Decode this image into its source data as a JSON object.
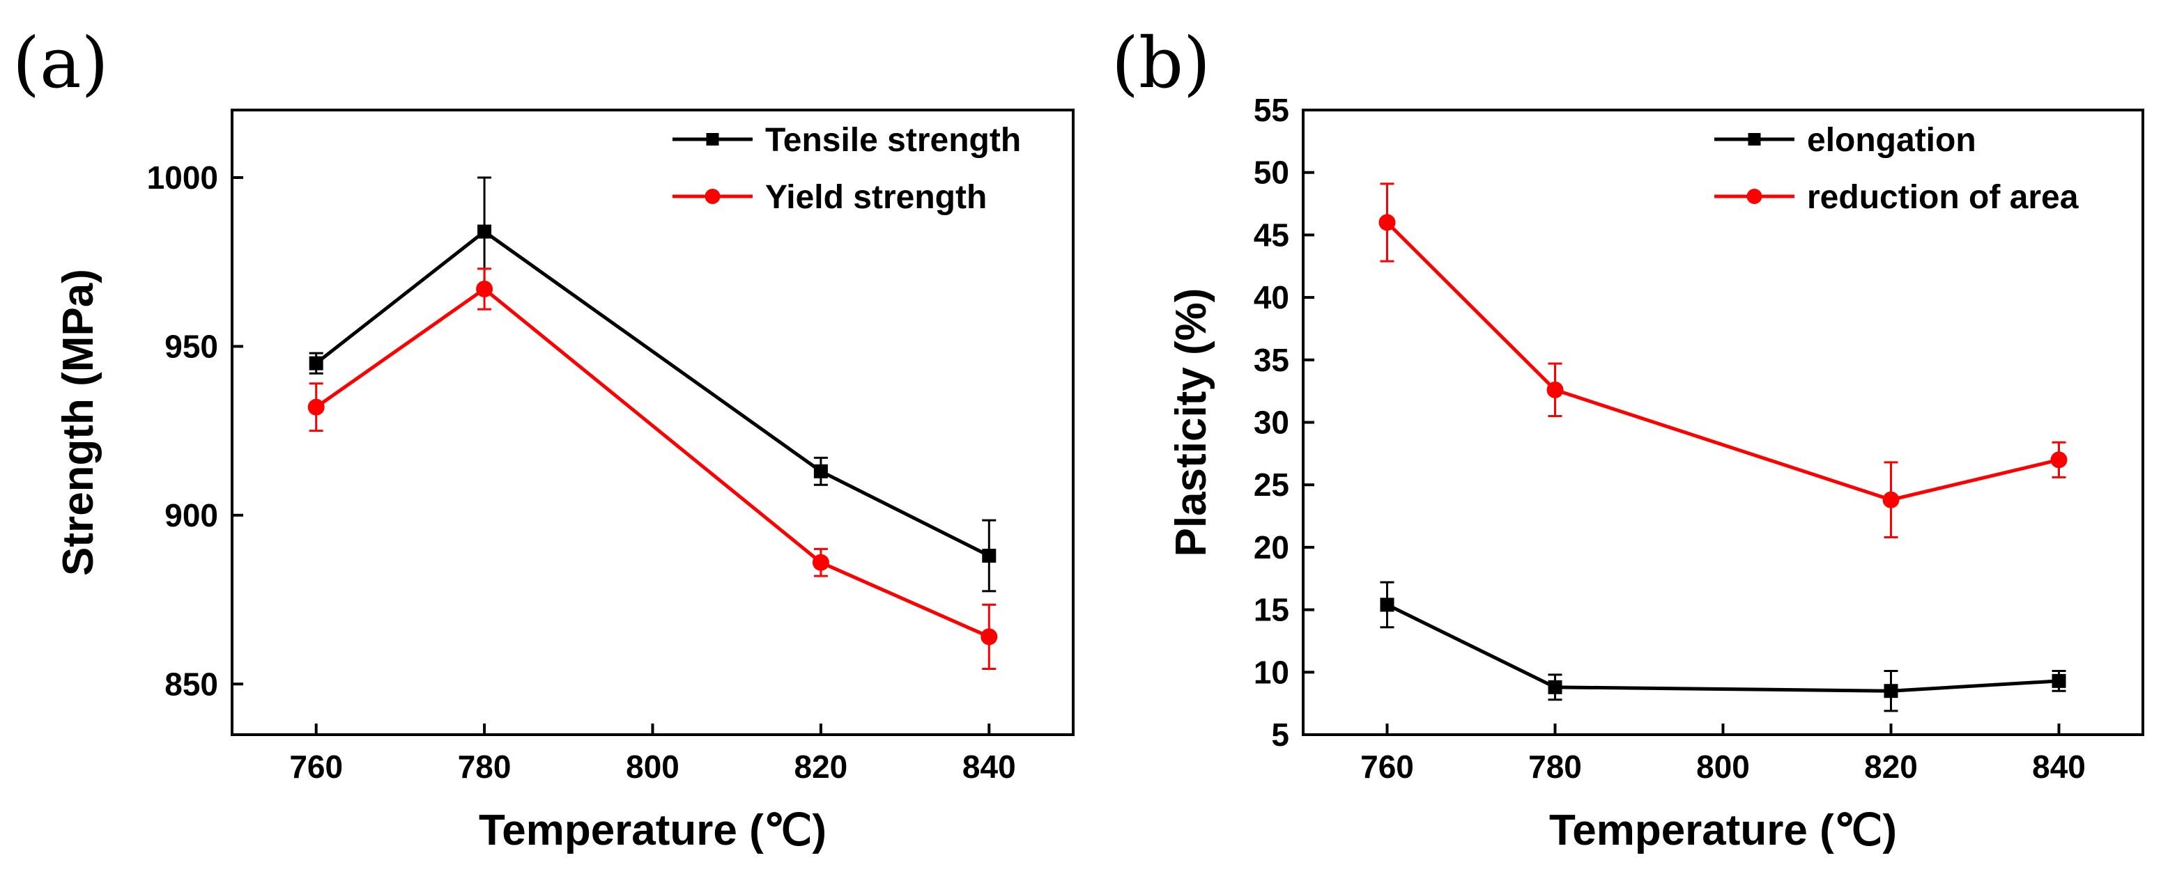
{
  "chart_data": [
    {
      "type": "line",
      "panel_label": "(a)",
      "xlabel": "Temperature (℃)",
      "ylabel": "Strength (MPa)",
      "xlim": [
        750,
        850
      ],
      "ylim": [
        835,
        1020
      ],
      "xticks": [
        760,
        780,
        800,
        820,
        840
      ],
      "yticks": [
        850,
        900,
        950,
        1000
      ],
      "x": [
        760,
        780,
        820,
        840
      ],
      "legend_position": "top-right",
      "series": [
        {
          "name": "Tensile strength",
          "color": "#000000",
          "marker": "square",
          "values": [
            945,
            984,
            913,
            888
          ],
          "errors": [
            3,
            16,
            4,
            10.5
          ]
        },
        {
          "name": "Yield strength",
          "color": "#ff0000",
          "marker": "circle",
          "values": [
            932,
            967,
            886,
            864
          ],
          "errors": [
            7,
            6,
            4,
            9.5
          ]
        }
      ]
    },
    {
      "type": "line",
      "panel_label": "(b)",
      "xlabel": "Temperature (℃)",
      "ylabel": "Plasticity (%)",
      "xlim": [
        750,
        850
      ],
      "ylim": [
        5,
        55
      ],
      "xticks": [
        760,
        780,
        800,
        820,
        840
      ],
      "yticks": [
        5,
        10,
        15,
        20,
        25,
        30,
        35,
        40,
        45,
        50,
        55
      ],
      "x": [
        760,
        780,
        820,
        840
      ],
      "legend_position": "top-right",
      "series": [
        {
          "name": "elongation",
          "color": "#000000",
          "marker": "square",
          "values": [
            15.4,
            8.8,
            8.5,
            9.3
          ],
          "errors": [
            1.8,
            1.0,
            1.6,
            0.8
          ]
        },
        {
          "name": "reduction of area",
          "color": "#ff0000",
          "marker": "circle",
          "values": [
            46.0,
            32.6,
            23.8,
            27.0
          ],
          "errors": [
            3.1,
            2.1,
            3.0,
            1.4
          ]
        }
      ]
    }
  ]
}
